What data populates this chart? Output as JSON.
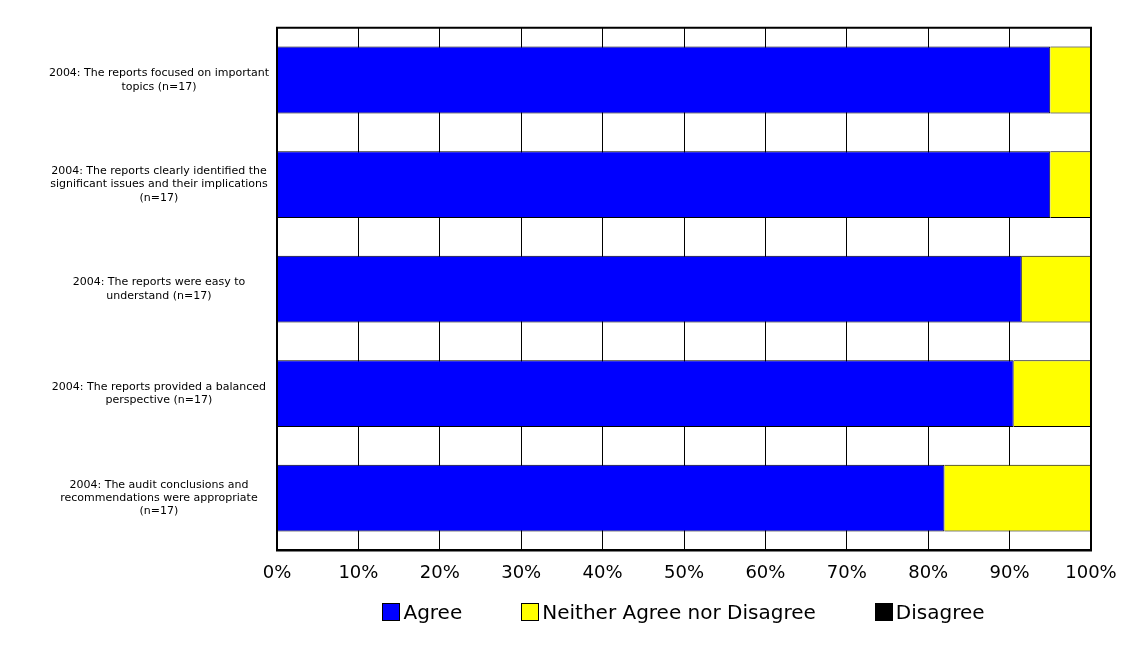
{
  "chart_data": {
    "type": "bar",
    "orientation": "horizontal",
    "stacked": true,
    "categories": [
      "2004: The reports focused on important topics (n=17)",
      "2004: The reports clearly identified the significant issues and their implications (n=17)",
      "2004: The reports were easy to understand (n=17)",
      "2004: The reports provided a balanced perspective (n=17)",
      "2004: The audit conclusions and recommendations were appropriate (n=17)"
    ],
    "series": [
      {
        "name": "Agree",
        "color": "#0000ff",
        "values": [
          95,
          95,
          91.5,
          90.5,
          82
        ]
      },
      {
        "name": "Neither Agree nor Disagree",
        "color": "#ffff00",
        "values": [
          5,
          5,
          8.5,
          9.5,
          18
        ]
      },
      {
        "name": "Disagree",
        "color": "#000000",
        "values": [
          0,
          0,
          0,
          0,
          0
        ]
      }
    ],
    "xlim": [
      0,
      100
    ],
    "xticks": [
      {
        "value": 0,
        "label": "0%"
      },
      {
        "value": 10,
        "label": "10%"
      },
      {
        "value": 20,
        "label": "20%"
      },
      {
        "value": 30,
        "label": "30%"
      },
      {
        "value": 40,
        "label": "40%"
      },
      {
        "value": 50,
        "label": "50%"
      },
      {
        "value": 60,
        "label": "60%"
      },
      {
        "value": 70,
        "label": "70%"
      },
      {
        "value": 80,
        "label": "80%"
      },
      {
        "value": 90,
        "label": "90%"
      },
      {
        "value": 100,
        "label": "100%"
      }
    ],
    "grid": "x",
    "legend": "bottom"
  }
}
